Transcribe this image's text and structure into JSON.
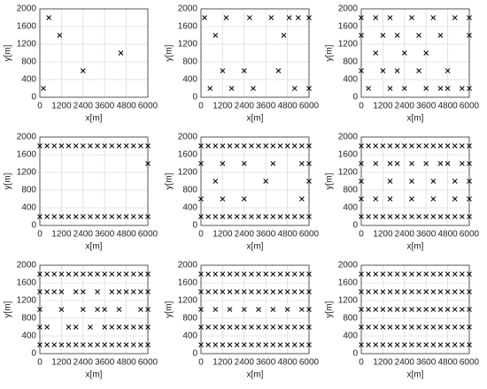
{
  "chart_data": [
    {
      "type": "scatter",
      "xlabel": "x[m]",
      "ylabel": "y[m]",
      "xlim": [
        0,
        6000
      ],
      "ylim": [
        0,
        2000
      ],
      "xticks": [
        0,
        1200,
        2400,
        3600,
        4800,
        6000
      ],
      "yticks": [
        0,
        400,
        800,
        1200,
        1600,
        2000
      ],
      "grid": true,
      "color": "#000000",
      "rows": [
        {
          "y": 1800,
          "x": [
            500
          ]
        },
        {
          "y": 1400,
          "x": [
            1100
          ]
        },
        {
          "y": 1000,
          "x": [
            4500
          ]
        },
        {
          "y": 600,
          "x": [
            2400
          ]
        },
        {
          "y": 200,
          "x": [
            200
          ]
        }
      ]
    },
    {
      "type": "scatter",
      "xlabel": "x[m]",
      "ylabel": "y[m]",
      "xlim": [
        0,
        6000
      ],
      "ylim": [
        0,
        2000
      ],
      "xticks": [
        0,
        1200,
        2400,
        3600,
        4800,
        6000
      ],
      "yticks": [
        0,
        400,
        800,
        1200,
        1600,
        2000
      ],
      "grid": true,
      "color": "#000000",
      "rows": [
        {
          "y": 1800,
          "x": [
            200,
            1400,
            2700,
            3900,
            4900,
            5400,
            6000
          ]
        },
        {
          "y": 1400,
          "x": [
            800,
            4600
          ]
        },
        {
          "y": 600,
          "x": [
            1200,
            2400,
            4300
          ]
        },
        {
          "y": 200,
          "x": [
            500,
            1700,
            2900,
            5200,
            6000
          ]
        }
      ]
    },
    {
      "type": "scatter",
      "xlabel": "x[m]",
      "ylabel": "y[m]",
      "xlim": [
        0,
        6000
      ],
      "ylim": [
        0,
        2000
      ],
      "xticks": [
        0,
        1200,
        2400,
        3600,
        4800,
        6000
      ],
      "yticks": [
        0,
        400,
        800,
        1200,
        1600,
        2000
      ],
      "grid": true,
      "color": "#000000",
      "rows": [
        {
          "y": 1800,
          "x": [
            0,
            800,
            1600,
            2800,
            4000,
            5200,
            6000
          ]
        },
        {
          "y": 1400,
          "x": [
            0,
            1200,
            2000,
            3200,
            4400,
            6000
          ]
        },
        {
          "y": 1000,
          "x": [
            800,
            2400,
            3600
          ]
        },
        {
          "y": 600,
          "x": [
            0,
            1200,
            2000,
            3200,
            4800
          ]
        },
        {
          "y": 200,
          "x": [
            400,
            1600,
            2400,
            3600,
            4400,
            4800,
            5600,
            6000
          ]
        }
      ]
    },
    {
      "type": "scatter",
      "xlabel": "x[m]",
      "ylabel": "y[m]",
      "xlim": [
        0,
        6000
      ],
      "ylim": [
        0,
        2000
      ],
      "xticks": [
        0,
        1200,
        2400,
        3600,
        4800,
        6000
      ],
      "yticks": [
        0,
        400,
        800,
        1200,
        1600,
        2000
      ],
      "grid": true,
      "color": "#000000",
      "rows": [
        {
          "y": 1800,
          "x": [
            0,
            400,
            800,
            1200,
            1600,
            2000,
            2400,
            2800,
            3200,
            3600,
            4000,
            4400,
            4800,
            5200,
            5600,
            6000
          ]
        },
        {
          "y": 1400,
          "x": [
            6000
          ]
        },
        {
          "y": 200,
          "x": [
            0,
            400,
            800,
            1200,
            1600,
            2000,
            2400,
            2800,
            3200,
            3600,
            4000,
            4400,
            4800,
            5200,
            5600,
            6000
          ]
        }
      ]
    },
    {
      "type": "scatter",
      "xlabel": "x[m]",
      "ylabel": "y[m]",
      "xlim": [
        0,
        6000
      ],
      "ylim": [
        0,
        2000
      ],
      "xticks": [
        0,
        1200,
        2400,
        3600,
        4800,
        6000
      ],
      "yticks": [
        0,
        400,
        800,
        1200,
        1600,
        2000
      ],
      "grid": true,
      "color": "#000000",
      "rows": [
        {
          "y": 1800,
          "x": [
            0,
            400,
            800,
            1200,
            1600,
            2000,
            2400,
            2800,
            3200,
            3600,
            4000,
            4400,
            4800,
            5200,
            5600,
            6000
          ]
        },
        {
          "y": 1400,
          "x": [
            0,
            1200,
            2400,
            4000,
            5600,
            6000
          ]
        },
        {
          "y": 1000,
          "x": [
            800,
            3600,
            6000
          ]
        },
        {
          "y": 600,
          "x": [
            0,
            1200,
            2400,
            5600
          ]
        },
        {
          "y": 200,
          "x": [
            0,
            400,
            800,
            1200,
            1600,
            2000,
            2400,
            2800,
            3200,
            3600,
            4000,
            4400,
            4800,
            5200,
            5600,
            6000
          ]
        }
      ]
    },
    {
      "type": "scatter",
      "xlabel": "x[m]",
      "ylabel": "y[m]",
      "xlim": [
        0,
        6000
      ],
      "ylim": [
        0,
        2000
      ],
      "xticks": [
        0,
        1200,
        2400,
        3600,
        4800,
        6000
      ],
      "yticks": [
        0,
        400,
        800,
        1200,
        1600,
        2000
      ],
      "grid": true,
      "color": "#000000",
      "rows": [
        {
          "y": 1800,
          "x": [
            0,
            400,
            800,
            1200,
            1600,
            2000,
            2400,
            2800,
            3200,
            3600,
            4000,
            4400,
            4800,
            5200,
            5600,
            6000
          ]
        },
        {
          "y": 1400,
          "x": [
            0,
            800,
            1600,
            2000,
            2800,
            3600,
            4400,
            4800,
            5600,
            6000
          ]
        },
        {
          "y": 1000,
          "x": [
            0,
            1600,
            2800,
            4000,
            5200,
            6000
          ]
        },
        {
          "y": 600,
          "x": [
            0,
            800,
            1600,
            2800,
            4000,
            5200,
            6000
          ]
        },
        {
          "y": 200,
          "x": [
            0,
            400,
            800,
            1200,
            1600,
            2000,
            2400,
            2800,
            3200,
            3600,
            4000,
            4400,
            4800,
            5200,
            5600,
            6000
          ]
        }
      ]
    },
    {
      "type": "scatter",
      "xlabel": "x[m]",
      "ylabel": "y[m]",
      "xlim": [
        0,
        6000
      ],
      "ylim": [
        0,
        2000
      ],
      "xticks": [
        0,
        1200,
        2400,
        3600,
        4800,
        6000
      ],
      "yticks": [
        0,
        400,
        800,
        1200,
        1600,
        2000
      ],
      "grid": true,
      "color": "#000000",
      "rows": [
        {
          "y": 1800,
          "x": [
            0,
            400,
            800,
            1200,
            1600,
            2000,
            2400,
            2800,
            3200,
            3600,
            4000,
            4400,
            4800,
            5200,
            5600,
            6000
          ]
        },
        {
          "y": 1400,
          "x": [
            0,
            400,
            800,
            1200,
            2000,
            2400,
            3200,
            4000,
            4400,
            4800,
            5200,
            5600,
            6000
          ]
        },
        {
          "y": 1000,
          "x": [
            0,
            1200,
            2400,
            3200,
            3600,
            4400,
            5600,
            6000
          ]
        },
        {
          "y": 600,
          "x": [
            0,
            400,
            1600,
            2000,
            2800,
            3600,
            4000,
            4400,
            4800,
            5200,
            5600,
            6000
          ]
        },
        {
          "y": 200,
          "x": [
            0,
            400,
            800,
            1200,
            1600,
            2000,
            2400,
            2800,
            3200,
            3600,
            4000,
            4400,
            4800,
            5200,
            5600,
            6000
          ]
        }
      ]
    },
    {
      "type": "scatter",
      "xlabel": "x[m]",
      "ylabel": "y[m]",
      "xlim": [
        0,
        6000
      ],
      "ylim": [
        0,
        2000
      ],
      "xticks": [
        0,
        1200,
        2400,
        3600,
        4800,
        6000
      ],
      "yticks": [
        0,
        400,
        800,
        1200,
        1600,
        2000
      ],
      "grid": true,
      "color": "#000000",
      "rows": [
        {
          "y": 1800,
          "x": [
            0,
            400,
            800,
            1200,
            1600,
            2000,
            2400,
            2800,
            3200,
            3600,
            4000,
            4400,
            4800,
            5200,
            5600,
            6000
          ]
        },
        {
          "y": 1400,
          "x": [
            0,
            400,
            800,
            1200,
            1600,
            2000,
            2400,
            2800,
            3200,
            3600,
            4000,
            4400,
            4800,
            5200,
            5600,
            6000
          ]
        },
        {
          "y": 1000,
          "x": [
            0,
            800,
            1600,
            2400,
            3200,
            4000,
            4800,
            5600,
            6000
          ]
        },
        {
          "y": 600,
          "x": [
            0,
            400,
            800,
            1200,
            1600,
            2000,
            2400,
            2800,
            3200,
            3600,
            4000,
            4400,
            4800,
            5200,
            5600,
            6000
          ]
        },
        {
          "y": 200,
          "x": [
            0,
            400,
            800,
            1200,
            1600,
            2000,
            2400,
            2800,
            3200,
            3600,
            4000,
            4400,
            4800,
            5200,
            5600,
            6000
          ]
        }
      ]
    },
    {
      "type": "scatter",
      "xlabel": "x[m]",
      "ylabel": "y[m]",
      "xlim": [
        0,
        6000
      ],
      "ylim": [
        0,
        2000
      ],
      "xticks": [
        0,
        1200,
        2400,
        3600,
        4800,
        6000
      ],
      "yticks": [
        0,
        400,
        800,
        1200,
        1600,
        2000
      ],
      "grid": true,
      "color": "#000000",
      "rows": [
        {
          "y": 1800,
          "x": [
            0,
            400,
            800,
            1200,
            1600,
            2000,
            2400,
            2800,
            3200,
            3600,
            4000,
            4400,
            4800,
            5200,
            5600,
            6000
          ]
        },
        {
          "y": 1400,
          "x": [
            0,
            400,
            800,
            1200,
            1600,
            2000,
            2400,
            2800,
            3200,
            3600,
            4000,
            4400,
            4800,
            5200,
            5600,
            6000
          ]
        },
        {
          "y": 1000,
          "x": [
            0,
            400,
            800,
            1200,
            1600,
            2000,
            2400,
            2800,
            3200,
            3600,
            4000,
            4400,
            4800,
            5200,
            5600,
            6000
          ]
        },
        {
          "y": 600,
          "x": [
            0,
            400,
            800,
            1200,
            1600,
            2000,
            2400,
            2800,
            3200,
            3600,
            4000,
            4400,
            4800,
            5200,
            5600,
            6000
          ]
        },
        {
          "y": 200,
          "x": [
            0,
            400,
            800,
            1200,
            1600,
            2000,
            2400,
            2800,
            3200,
            3600,
            4000,
            4400,
            4800,
            5200,
            5600,
            6000
          ]
        }
      ]
    }
  ]
}
